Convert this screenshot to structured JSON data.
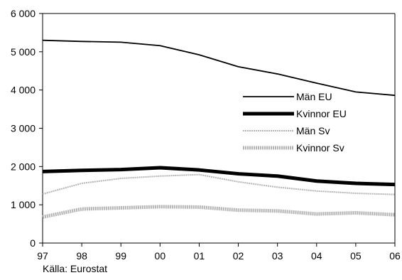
{
  "chart_data": {
    "type": "line",
    "categories": [
      "97",
      "98",
      "99",
      "00",
      "01",
      "02",
      "03",
      "04",
      "05",
      "06"
    ],
    "ylim": [
      0,
      6000
    ],
    "yticks": [
      0,
      1000,
      2000,
      3000,
      4000,
      5000,
      6000
    ],
    "ytick_labels": [
      "0",
      "1 000",
      "2 000",
      "3 000",
      "4 000",
      "5 000",
      "6 000"
    ],
    "grid": false,
    "legend_placement": "right",
    "series": [
      {
        "name": "Män EU",
        "values": [
          5300,
          5270,
          5250,
          5160,
          4920,
          4610,
          4420,
          4180,
          3950,
          3860
        ],
        "color": "#000000",
        "style": "solid-thin"
      },
      {
        "name": "Kvinnor EU",
        "values": [
          1870,
          1900,
          1920,
          1970,
          1910,
          1810,
          1750,
          1620,
          1560,
          1530
        ],
        "color": "#000000",
        "style": "solid-thick"
      },
      {
        "name": "Män Sv",
        "values": [
          1280,
          1560,
          1690,
          1750,
          1790,
          1600,
          1460,
          1360,
          1300,
          1270
        ],
        "color": "#b3b3b3",
        "style": "dotted-thin"
      },
      {
        "name": "Kvinnor Sv",
        "values": [
          680,
          890,
          920,
          950,
          940,
          860,
          840,
          760,
          790,
          740
        ],
        "color": "#b3b3b3",
        "style": "dotted-thick"
      }
    ]
  },
  "source_note": "Källa: Eurostat"
}
